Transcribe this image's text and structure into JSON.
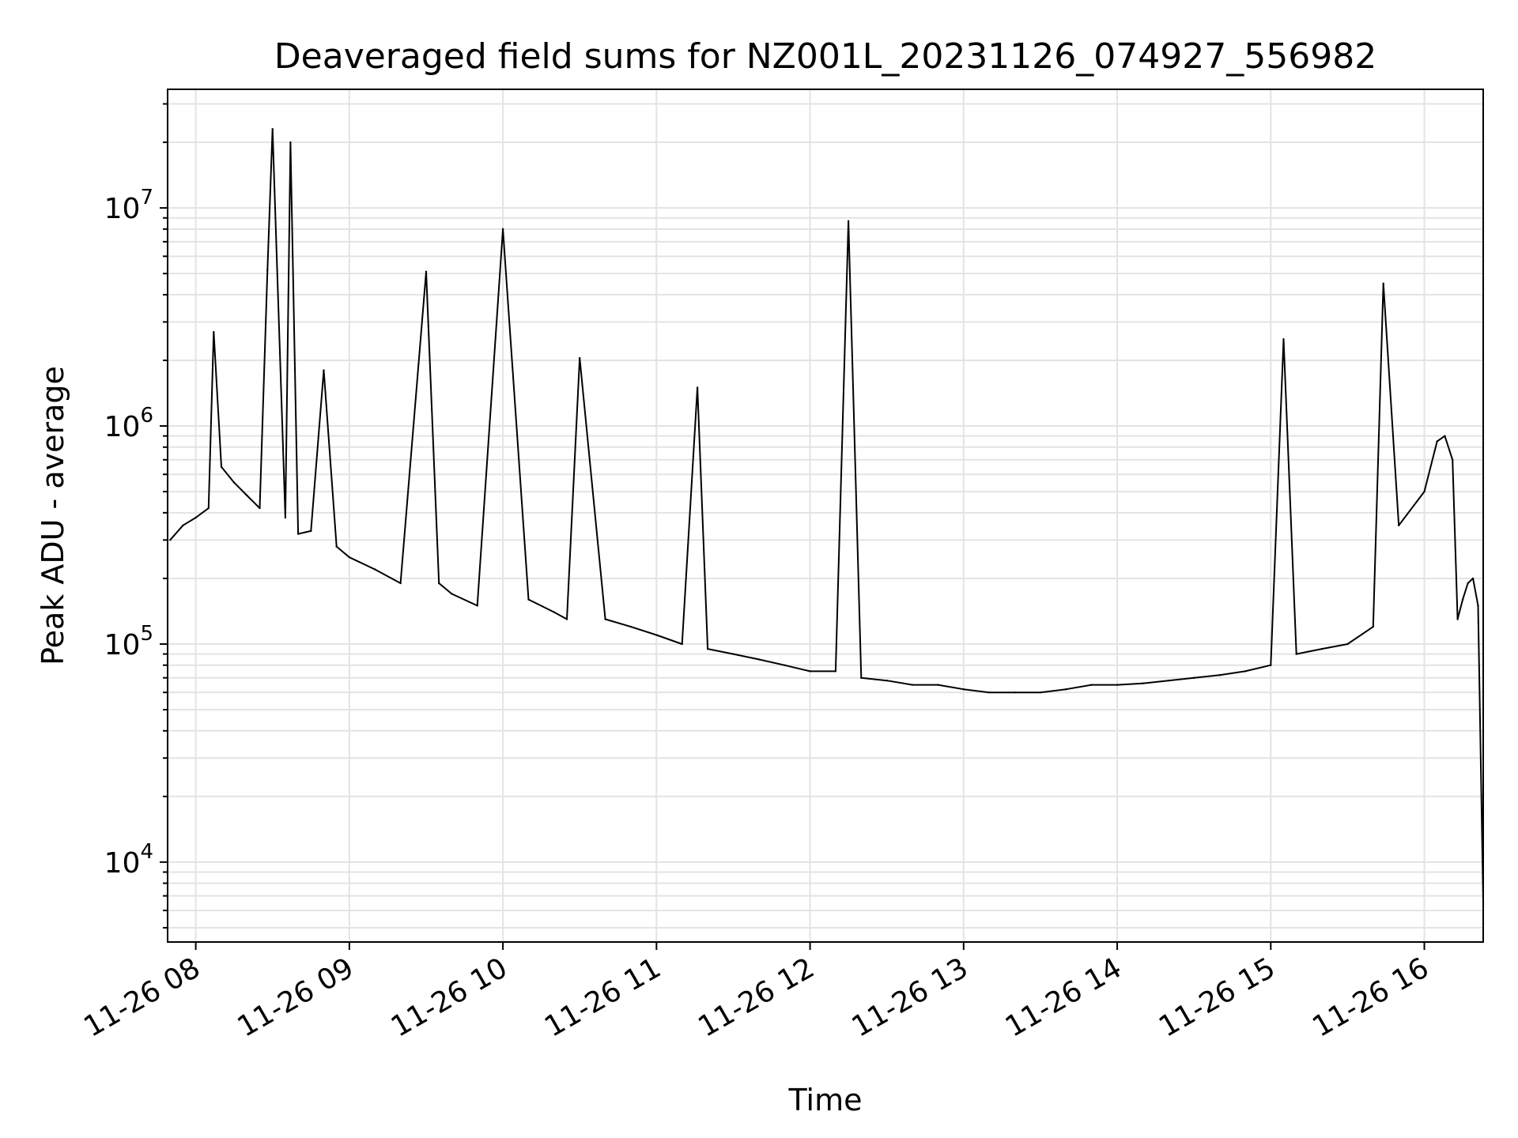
{
  "chart_data": {
    "type": "line",
    "title": "Deaveraged field sums for NZ001L_20231126_074927_556982",
    "xlabel": "Time",
    "ylabel": "Peak ADU - average",
    "y_scale": "log",
    "ylim": [
      4300,
      35000000
    ],
    "xlim": [
      "2023-11-26 07:49",
      "2023-11-26 16:23"
    ],
    "grid": true,
    "legend": "none",
    "line_color": "#000000",
    "grid_color": "#e3e3e3",
    "x_ticks": [
      {
        "value": "2023-11-26 08:00",
        "label": "11-26 08"
      },
      {
        "value": "2023-11-26 09:00",
        "label": "11-26 09"
      },
      {
        "value": "2023-11-26 10:00",
        "label": "11-26 10"
      },
      {
        "value": "2023-11-26 11:00",
        "label": "11-26 11"
      },
      {
        "value": "2023-11-26 12:00",
        "label": "11-26 12"
      },
      {
        "value": "2023-11-26 13:00",
        "label": "11-26 13"
      },
      {
        "value": "2023-11-26 14:00",
        "label": "11-26 14"
      },
      {
        "value": "2023-11-26 15:00",
        "label": "11-26 15"
      },
      {
        "value": "2023-11-26 16:00",
        "label": "11-26 16"
      }
    ],
    "y_ticks": [
      {
        "value": 10000,
        "base": "10",
        "exp": "4"
      },
      {
        "value": 100000,
        "base": "10",
        "exp": "5"
      },
      {
        "value": 1000000,
        "base": "10",
        "exp": "6"
      },
      {
        "value": 10000000,
        "base": "10",
        "exp": "7"
      }
    ],
    "series": [
      {
        "x": [
          "2023-11-26 07:50",
          "2023-11-26 07:55",
          "2023-11-26 08:00",
          "2023-11-26 08:05",
          "2023-11-26 08:07",
          "2023-11-26 08:10",
          "2023-11-26 08:15",
          "2023-11-26 08:20",
          "2023-11-26 08:25",
          "2023-11-26 08:28",
          "2023-11-26 08:30",
          "2023-11-26 08:35",
          "2023-11-26 08:37",
          "2023-11-26 08:40",
          "2023-11-26 08:45",
          "2023-11-26 08:50",
          "2023-11-26 08:55",
          "2023-11-26 09:00",
          "2023-11-26 09:10",
          "2023-11-26 09:20",
          "2023-11-26 09:30",
          "2023-11-26 09:35",
          "2023-11-26 09:40",
          "2023-11-26 09:50",
          "2023-11-26 10:00",
          "2023-11-26 10:10",
          "2023-11-26 10:20",
          "2023-11-26 10:25",
          "2023-11-26 10:30",
          "2023-11-26 10:40",
          "2023-11-26 10:50",
          "2023-11-26 11:00",
          "2023-11-26 11:10",
          "2023-11-26 11:16",
          "2023-11-26 11:20",
          "2023-11-26 11:30",
          "2023-11-26 11:40",
          "2023-11-26 11:50",
          "2023-11-26 12:00",
          "2023-11-26 12:10",
          "2023-11-26 12:15",
          "2023-11-26 12:20",
          "2023-11-26 12:30",
          "2023-11-26 12:40",
          "2023-11-26 12:50",
          "2023-11-26 13:00",
          "2023-11-26 13:10",
          "2023-11-26 13:20",
          "2023-11-26 13:30",
          "2023-11-26 13:40",
          "2023-11-26 13:50",
          "2023-11-26 14:00",
          "2023-11-26 14:10",
          "2023-11-26 14:20",
          "2023-11-26 14:30",
          "2023-11-26 14:40",
          "2023-11-26 14:50",
          "2023-11-26 15:00",
          "2023-11-26 15:05",
          "2023-11-26 15:10",
          "2023-11-26 15:20",
          "2023-11-26 15:30",
          "2023-11-26 15:40",
          "2023-11-26 15:44",
          "2023-11-26 15:50",
          "2023-11-26 16:00",
          "2023-11-26 16:05",
          "2023-11-26 16:08",
          "2023-11-26 16:11",
          "2023-11-26 16:13",
          "2023-11-26 16:15",
          "2023-11-26 16:17",
          "2023-11-26 16:19",
          "2023-11-26 16:21",
          "2023-11-26 16:23"
        ],
        "y": [
          300000,
          350000,
          380000,
          420000,
          2700000,
          650000,
          550000,
          480000,
          420000,
          5200000,
          23000000,
          380000,
          20000000,
          320000,
          330000,
          1800000,
          280000,
          250000,
          220000,
          190000,
          5100000,
          190000,
          170000,
          150000,
          8000000,
          160000,
          140000,
          130000,
          2050000,
          130000,
          120000,
          110000,
          100000,
          1500000,
          95000,
          90000,
          85000,
          80000,
          75000,
          75000,
          8700000,
          70000,
          68000,
          65000,
          65000,
          62000,
          60000,
          60000,
          60000,
          62000,
          65000,
          65000,
          66000,
          68000,
          70000,
          72000,
          75000,
          80000,
          2500000,
          90000,
          95000,
          100000,
          120000,
          4500000,
          350000,
          500000,
          850000,
          900000,
          700000,
          130000,
          160000,
          190000,
          200000,
          150000,
          6500
        ]
      }
    ]
  }
}
